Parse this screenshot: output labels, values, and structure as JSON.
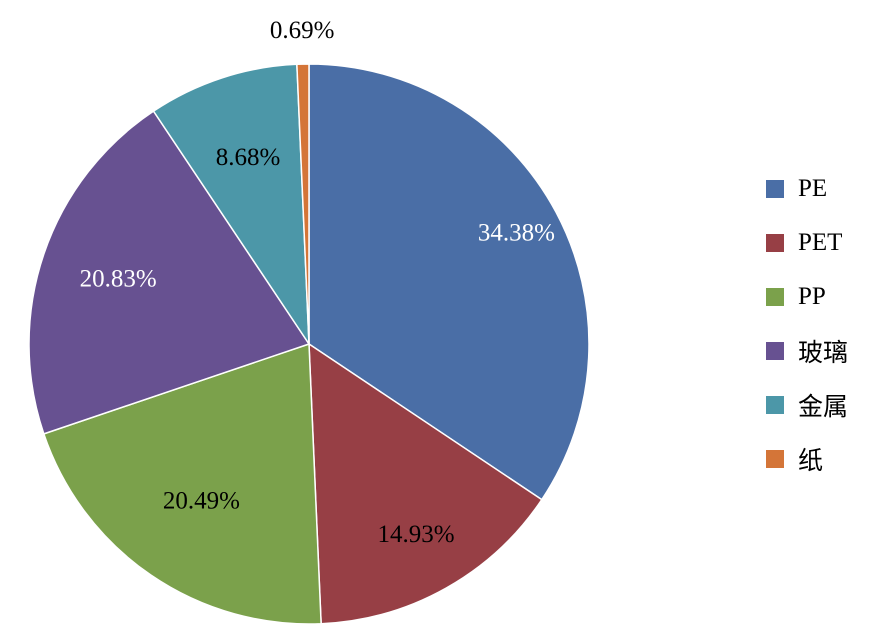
{
  "chart_data": {
    "type": "pie",
    "title": "",
    "start_angle_deg": 0,
    "direction": "clockwise",
    "slices": [
      {
        "name": "PE",
        "value": 34.38,
        "label": "34.38%",
        "color": "#4A6EA6",
        "label_color": "#ffffff"
      },
      {
        "name": "PET",
        "value": 14.93,
        "label": "14.93%",
        "color": "#973F45",
        "label_color": "#000000"
      },
      {
        "name": "PP",
        "value": 20.49,
        "label": "20.49%",
        "color": "#7BA14B",
        "label_color": "#000000"
      },
      {
        "name": "玻璃",
        "value": 20.83,
        "label": "20.83%",
        "color": "#675191",
        "label_color": "#ffffff"
      },
      {
        "name": "金属",
        "value": 8.68,
        "label": "8.68%",
        "color": "#4C97A8",
        "label_color": "#000000"
      },
      {
        "name": "纸",
        "value": 0.69,
        "label": "0.69%",
        "color": "#D47538",
        "label_color": "#000000"
      }
    ],
    "legend_position": "right",
    "border_color": "#ffffff"
  }
}
